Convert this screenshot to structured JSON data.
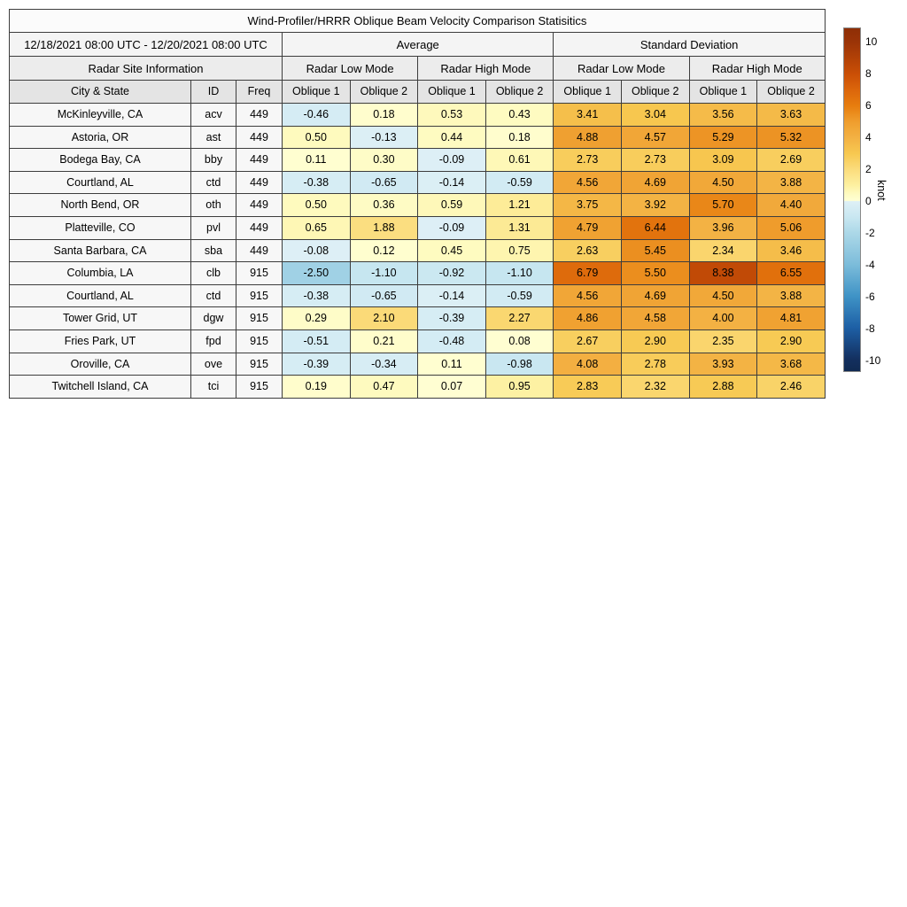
{
  "chart_data": {
    "type": "heatmap",
    "title": "Wind-Profiler/HRRR Oblique Beam Velocity Comparison Statisitics",
    "date_range": "12/18/2021 08:00 UTC - 12/20/2021 08:00 UTC",
    "site_info_label": "Radar Site Information",
    "groups": [
      "Average",
      "Standard Deviation"
    ],
    "mode_groups": [
      "Radar Low Mode",
      "Radar High Mode",
      "Radar Low Mode",
      "Radar High Mode"
    ],
    "columns": [
      "City & State",
      "ID",
      "Freq",
      "Oblique 1",
      "Oblique 2",
      "Oblique 1",
      "Oblique 2",
      "Oblique 1",
      "Oblique 2",
      "Oblique 1",
      "Oblique 2"
    ],
    "rows": [
      {
        "city": "McKinleyville, CA",
        "id": "acv",
        "freq": "449",
        "values": [
          "-0.46",
          "0.18",
          "0.53",
          "0.43",
          "3.41",
          "3.04",
          "3.56",
          "3.63"
        ]
      },
      {
        "city": "Astoria, OR",
        "id": "ast",
        "freq": "449",
        "values": [
          "0.50",
          "-0.13",
          "0.44",
          "0.18",
          "4.88",
          "4.57",
          "5.29",
          "5.32"
        ]
      },
      {
        "city": "Bodega Bay, CA",
        "id": "bby",
        "freq": "449",
        "values": [
          "0.11",
          "0.30",
          "-0.09",
          "0.61",
          "2.73",
          "2.73",
          "3.09",
          "2.69"
        ]
      },
      {
        "city": "Courtland, AL",
        "id": "ctd",
        "freq": "449",
        "values": [
          "-0.38",
          "-0.65",
          "-0.14",
          "-0.59",
          "4.56",
          "4.69",
          "4.50",
          "3.88"
        ]
      },
      {
        "city": "North Bend, OR",
        "id": "oth",
        "freq": "449",
        "values": [
          "0.50",
          "0.36",
          "0.59",
          "1.21",
          "3.75",
          "3.92",
          "5.70",
          "4.40"
        ]
      },
      {
        "city": "Platteville, CO",
        "id": "pvl",
        "freq": "449",
        "values": [
          "0.65",
          "1.88",
          "-0.09",
          "1.31",
          "4.79",
          "6.44",
          "3.96",
          "5.06"
        ]
      },
      {
        "city": "Santa Barbara, CA",
        "id": "sba",
        "freq": "449",
        "values": [
          "-0.08",
          "0.12",
          "0.45",
          "0.75",
          "2.63",
          "5.45",
          "2.34",
          "3.46"
        ]
      },
      {
        "city": "Columbia, LA",
        "id": "clb",
        "freq": "915",
        "values": [
          "-2.50",
          "-1.10",
          "-0.92",
          "-1.10",
          "6.79",
          "5.50",
          "8.38",
          "6.55"
        ]
      },
      {
        "city": "Courtland, AL",
        "id": "ctd",
        "freq": "915",
        "values": [
          "-0.38",
          "-0.65",
          "-0.14",
          "-0.59",
          "4.56",
          "4.69",
          "4.50",
          "3.88"
        ]
      },
      {
        "city": "Tower Grid, UT",
        "id": "dgw",
        "freq": "915",
        "values": [
          "0.29",
          "2.10",
          "-0.39",
          "2.27",
          "4.86",
          "4.58",
          "4.00",
          "4.81"
        ]
      },
      {
        "city": "Fries Park, UT",
        "id": "fpd",
        "freq": "915",
        "values": [
          "-0.51",
          "0.21",
          "-0.48",
          "0.08",
          "2.67",
          "2.90",
          "2.35",
          "2.90"
        ]
      },
      {
        "city": "Oroville, CA",
        "id": "ove",
        "freq": "915",
        "values": [
          "-0.39",
          "-0.34",
          "0.11",
          "-0.98",
          "4.08",
          "2.78",
          "3.93",
          "3.68"
        ]
      },
      {
        "city": "Twitchell Island, CA",
        "id": "tci",
        "freq": "915",
        "values": [
          "0.19",
          "0.47",
          "0.07",
          "0.95",
          "2.83",
          "2.32",
          "2.88",
          "2.46"
        ]
      }
    ],
    "colorbar": {
      "label": "knot",
      "ticks": [
        "10",
        "8",
        "6",
        "4",
        "2",
        "0",
        "-2",
        "-4",
        "-6",
        "-8",
        "-10"
      ],
      "tick_values": [
        10,
        8,
        6,
        4,
        2,
        0,
        -2,
        -4,
        -6,
        -8,
        -10
      ],
      "vmin": -10,
      "vmax": 10,
      "colormap_stops": [
        [
          -10.7,
          "#102a52"
        ],
        [
          -10,
          "#132f5e"
        ],
        [
          -8,
          "#1d5fa5"
        ],
        [
          -6,
          "#3f93c6"
        ],
        [
          -4,
          "#7cbcda"
        ],
        [
          -2,
          "#acd8e8"
        ],
        [
          -1,
          "#c9e7f1"
        ],
        [
          -0.02,
          "#def0f6"
        ],
        [
          0.02,
          "#ffffd4"
        ],
        [
          0.5,
          "#fefabe"
        ],
        [
          1,
          "#fdf0a0"
        ],
        [
          2,
          "#fbdc7c"
        ],
        [
          3,
          "#f7c850"
        ],
        [
          4,
          "#f3b143"
        ],
        [
          5,
          "#ef9e2e"
        ],
        [
          6,
          "#e77d0e"
        ],
        [
          7,
          "#dc660b"
        ],
        [
          8,
          "#ca4f06"
        ],
        [
          10,
          "#9b3407"
        ],
        [
          10.9,
          "#8e2e06"
        ]
      ]
    }
  }
}
